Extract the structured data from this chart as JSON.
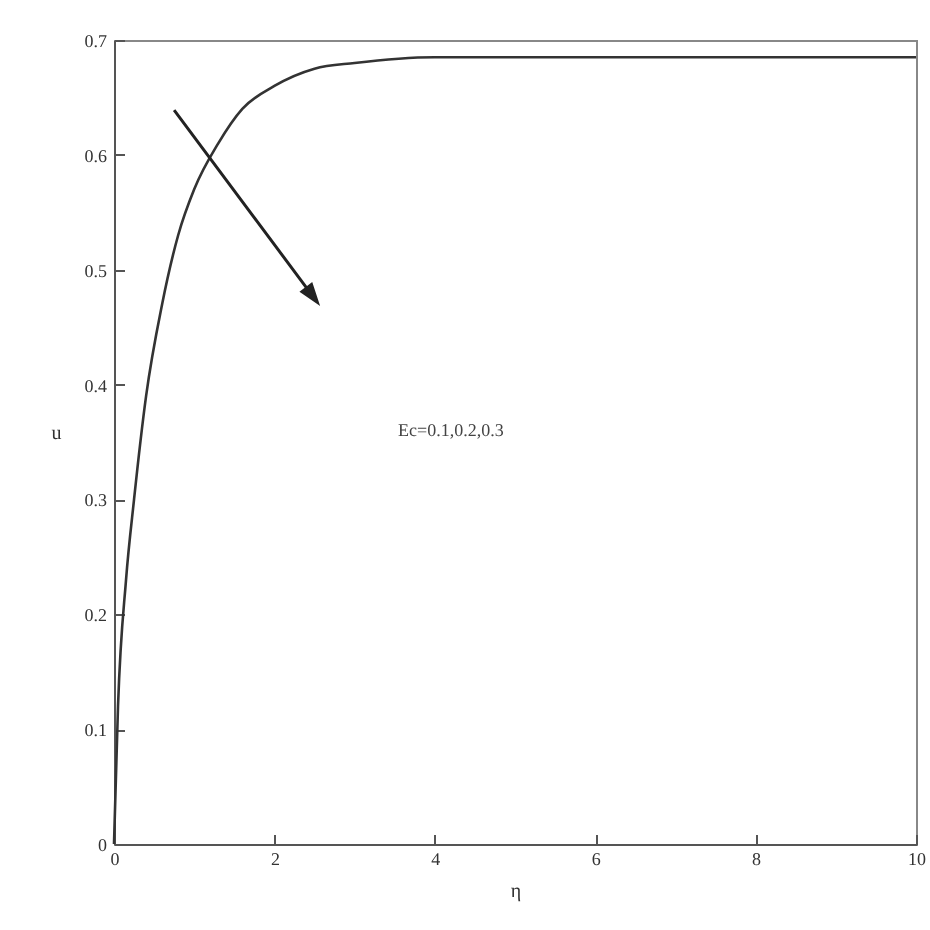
{
  "chart_data": {
    "type": "line",
    "xlabel": "η",
    "ylabel": "u",
    "x": [
      0,
      0.05,
      0.15,
      0.25,
      0.4,
      0.6,
      0.8,
      1.0,
      1.3,
      1.6,
      2.0,
      2.5,
      3.0,
      4.0,
      5.0,
      6.0,
      7.0,
      8.0,
      9.0,
      10.0
    ],
    "values": [
      0,
      0.12,
      0.23,
      0.3,
      0.39,
      0.47,
      0.53,
      0.57,
      0.61,
      0.64,
      0.66,
      0.675,
      0.68,
      0.685,
      0.685,
      0.685,
      0.685,
      0.685,
      0.685,
      0.685
    ],
    "color": "#333333",
    "xlim": [
      0,
      10
    ],
    "xticks": [
      0,
      2,
      4,
      6,
      8,
      10
    ],
    "ylim": [
      0,
      0.7
    ],
    "yticks": [
      0,
      0.1,
      0.2,
      0.3,
      0.4,
      0.5,
      0.6,
      0.7
    ],
    "annotations": [
      "Ec=0.1,0.2,0.3"
    ]
  }
}
